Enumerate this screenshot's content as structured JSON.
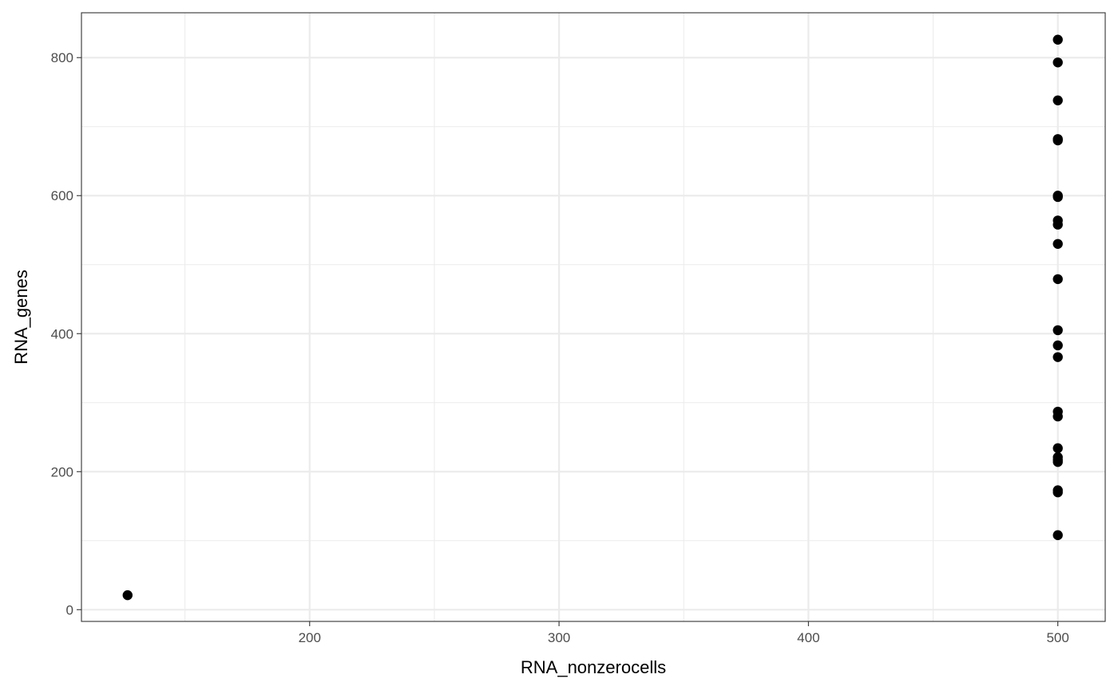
{
  "chart_data": {
    "type": "scatter",
    "title": "",
    "xlabel": "RNA_nonzerocells",
    "ylabel": "RNA_genes",
    "xlim": [
      108.5,
      519
    ],
    "ylim": [
      -17,
      865
    ],
    "x_ticks": [
      200,
      300,
      400,
      500
    ],
    "y_ticks": [
      0,
      200,
      400,
      600,
      800
    ],
    "x_minor_ticks": [
      150,
      250,
      350,
      450
    ],
    "y_minor_ticks": [
      100,
      300,
      500,
      700
    ],
    "grid": true,
    "legend": "none",
    "point_color": "#000000",
    "points": [
      {
        "x": 127,
        "y": 21
      },
      {
        "x": 500,
        "y": 108
      },
      {
        "x": 500,
        "y": 170
      },
      {
        "x": 500,
        "y": 173
      },
      {
        "x": 500,
        "y": 214
      },
      {
        "x": 500,
        "y": 217
      },
      {
        "x": 500,
        "y": 221
      },
      {
        "x": 500,
        "y": 234
      },
      {
        "x": 500,
        "y": 280
      },
      {
        "x": 500,
        "y": 287
      },
      {
        "x": 500,
        "y": 366
      },
      {
        "x": 500,
        "y": 383
      },
      {
        "x": 500,
        "y": 405
      },
      {
        "x": 500,
        "y": 479
      },
      {
        "x": 500,
        "y": 530
      },
      {
        "x": 500,
        "y": 558
      },
      {
        "x": 500,
        "y": 564
      },
      {
        "x": 500,
        "y": 598
      },
      {
        "x": 500,
        "y": 600
      },
      {
        "x": 500,
        "y": 680
      },
      {
        "x": 500,
        "y": 682
      },
      {
        "x": 500,
        "y": 738
      },
      {
        "x": 500,
        "y": 793
      },
      {
        "x": 500,
        "y": 826
      }
    ]
  }
}
